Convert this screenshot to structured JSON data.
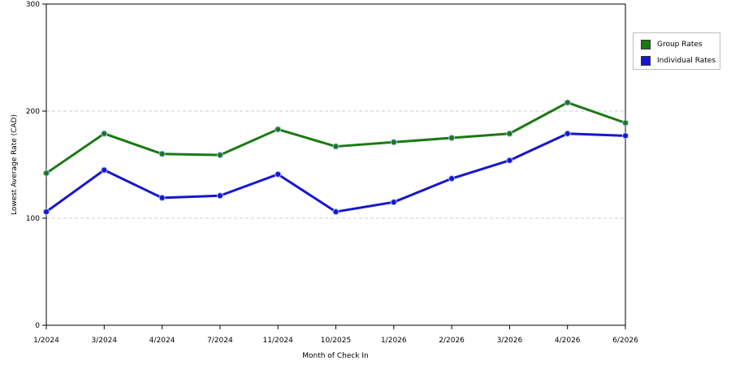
{
  "chart_data": {
    "type": "line",
    "categories": [
      "1/2024",
      "3/2024",
      "4/2024",
      "7/2024",
      "11/2024",
      "10/2025",
      "1/2026",
      "2/2026",
      "3/2026",
      "4/2026",
      "6/2026"
    ],
    "series": [
      {
        "name": "Group Rates",
        "color": "#1a7a12",
        "values": [
          142,
          179,
          160,
          159,
          183,
          167,
          171,
          175,
          179,
          208,
          189
        ]
      },
      {
        "name": "Individual Rates",
        "color": "#1616cc",
        "values": [
          106,
          145,
          119,
          121,
          141,
          106,
          115,
          137,
          154,
          179,
          177
        ]
      }
    ],
    "xlabel": "Month of Check In",
    "ylabel": "Lowest Average Rate (CAD)",
    "ylim": [
      0,
      300
    ],
    "yticks": [
      "0",
      "100",
      "200",
      "300"
    ],
    "grid": true,
    "legend_position": "right"
  }
}
